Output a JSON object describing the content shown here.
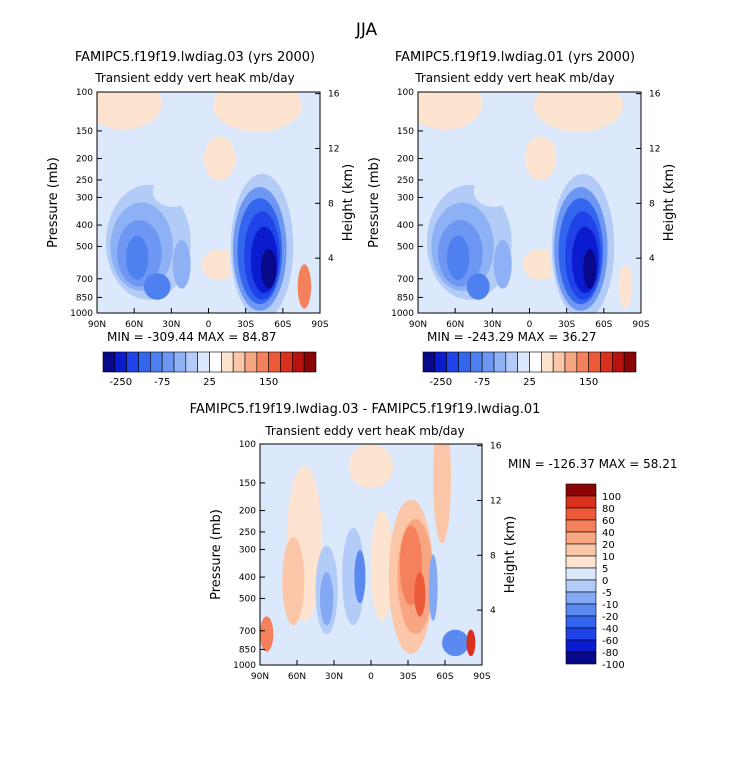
{
  "figure": {
    "title": "JJA"
  },
  "colors": {
    "full": [
      "#08088a",
      "#0b1bd0",
      "#1f43e8",
      "#3366ee",
      "#4f80f0",
      "#6d97f2",
      "#8eb0f5",
      "#b3cbf7",
      "#dce8fb",
      "#ffffff",
      "#fde4d0",
      "#fbc7a8",
      "#f8a581",
      "#f4805c",
      "#ec5a3a",
      "#d9311d",
      "#b8130f",
      "#8a0606"
    ],
    "diff": [
      "#08088a",
      "#0b1bd0",
      "#1f43e8",
      "#3366ee",
      "#5a8af0",
      "#84a9f4",
      "#b3cbf7",
      "#dce8fb",
      "#fde4d0",
      "#fbc7a8",
      "#f8a581",
      "#f4805c",
      "#ec5a3a",
      "#d9311d",
      "#8a0606"
    ]
  },
  "chart_data": [
    {
      "type": "heatmap",
      "title": "FAMIPC5.f19f19.lwdiag.03 (yrs 2000)",
      "subtitle": "Transient eddy vert heaK mb/day",
      "ylabel": "Pressure (mb)",
      "ylabel_right": "Height (km)",
      "x_ticks": [
        "90N",
        "60N",
        "30N",
        "0",
        "30S",
        "60S",
        "90S"
      ],
      "y_ticks": [
        100,
        150,
        200,
        250,
        300,
        400,
        500,
        700,
        850,
        1000
      ],
      "y_right_ticks": [
        4,
        8,
        12,
        16
      ],
      "ylim": [
        1000,
        100
      ],
      "stats": "MIN = -309.44   MAX =  84.87",
      "colorbar_labels": [
        "-250",
        "-75",
        "25",
        "150"
      ],
      "colorbar_levels": [
        -250,
        -200,
        -175,
        -150,
        -125,
        -100,
        -75,
        -50,
        -25,
        0,
        25,
        50,
        75,
        100,
        125,
        150,
        175,
        200
      ]
    },
    {
      "type": "heatmap",
      "title": "FAMIPC5.f19f19.lwdiag.01 (yrs 2000)",
      "subtitle": "Transient eddy vert heaK mb/day",
      "ylabel": "Pressure (mb)",
      "ylabel_right": "Height (km)",
      "x_ticks": [
        "90N",
        "60N",
        "30N",
        "0",
        "30S",
        "60S",
        "90S"
      ],
      "y_ticks": [
        100,
        150,
        200,
        250,
        300,
        400,
        500,
        700,
        850,
        1000
      ],
      "y_right_ticks": [
        4,
        8,
        12,
        16
      ],
      "ylim": [
        1000,
        100
      ],
      "stats": "MIN = -243.29   MAX =  36.27",
      "colorbar_labels": [
        "-250",
        "-75",
        "25",
        "150"
      ],
      "colorbar_levels": [
        -250,
        -200,
        -175,
        -150,
        -125,
        -100,
        -75,
        -50,
        -25,
        0,
        25,
        50,
        75,
        100,
        125,
        150,
        175,
        200
      ]
    },
    {
      "type": "heatmap",
      "title": "FAMIPC5.f19f19.lwdiag.03 - FAMIPC5.f19f19.lwdiag.01",
      "subtitle": "Transient eddy vert heaK mb/day",
      "ylabel": "Pressure (mb)",
      "ylabel_right": "Height (km)",
      "x_ticks": [
        "90N",
        "60N",
        "30N",
        "0",
        "30S",
        "60S",
        "90S"
      ],
      "y_ticks": [
        100,
        150,
        200,
        250,
        300,
        400,
        500,
        700,
        850,
        1000
      ],
      "y_right_ticks": [
        4,
        8,
        12,
        16
      ],
      "ylim": [
        1000,
        100
      ],
      "stats": "MIN = -126.37   MAX =  58.21",
      "colorbar_labels": [
        "100",
        "80",
        "60",
        "40",
        "20",
        "10",
        "5",
        "0",
        "-5",
        "-10",
        "-20",
        "-40",
        "-60",
        "-80",
        "-100"
      ]
    }
  ]
}
